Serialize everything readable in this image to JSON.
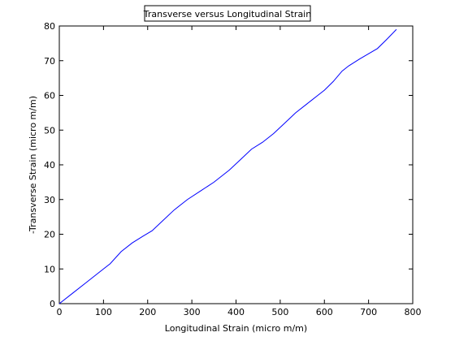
{
  "chart_data": {
    "type": "line",
    "title": "Transverse versus Longitudinal Strain",
    "xlabel": "Longitudinal Strain (micro m/m)",
    "ylabel": "-Transverse Strain (micro m/m)",
    "xlim": [
      0,
      800
    ],
    "ylim": [
      0,
      80
    ],
    "xticks": [
      0,
      100,
      200,
      300,
      400,
      500,
      600,
      700,
      800
    ],
    "yticks": [
      0,
      10,
      20,
      30,
      40,
      50,
      60,
      70,
      80
    ],
    "grid": false,
    "series": [
      {
        "color": "#0000ff",
        "x": [
          0,
          30,
          60,
          90,
          115,
          140,
          165,
          190,
          210,
          235,
          260,
          290,
          320,
          350,
          385,
          410,
          435,
          460,
          485,
          510,
          535,
          560,
          585,
          600,
          620,
          640,
          655,
          680,
          700,
          720,
          740,
          763
        ],
        "y": [
          0,
          3,
          6,
          9,
          11.5,
          15,
          17.5,
          19.5,
          21,
          24,
          27,
          30,
          32.5,
          35,
          38.5,
          41.5,
          44.5,
          46.5,
          49,
          52,
          55,
          57.5,
          60,
          61.5,
          64,
          67,
          68.5,
          70.5,
          72,
          73.5,
          76,
          79
        ]
      }
    ]
  }
}
